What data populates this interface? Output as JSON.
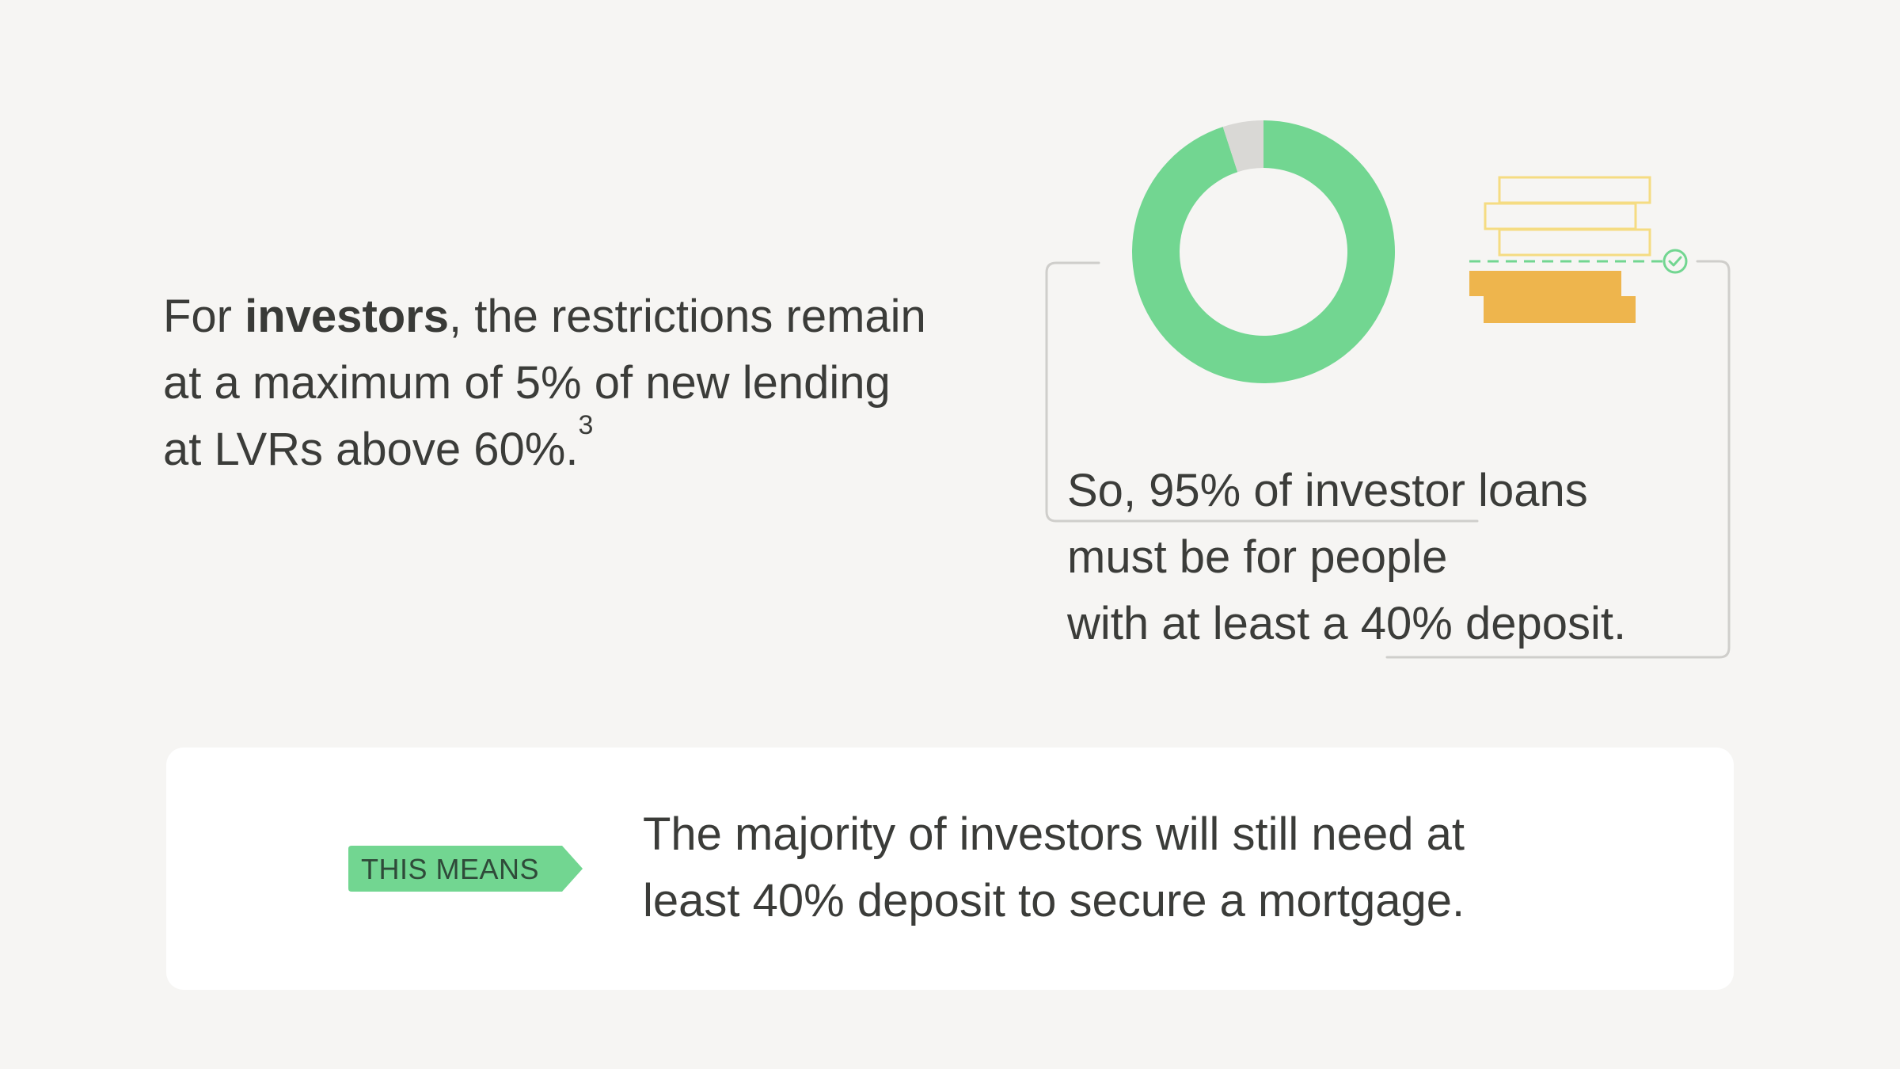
{
  "intro": {
    "prefix": "For ",
    "bold": "investors",
    "suffix": ", the restrictions remain at a maximum of 5% of new lending at LVRs above 60%.",
    "footnote": "3"
  },
  "chart_data": {
    "type": "pie",
    "style": "donut",
    "values": [
      95,
      5
    ],
    "colors": [
      "#72d691",
      "#d9d8d5"
    ]
  },
  "stat": {
    "lines": [
      "So, 95% of investor loans",
      "must be for people",
      "with at least a 40% deposit."
    ]
  },
  "callout": {
    "tag": "THIS MEANS",
    "lines": [
      "The majority of investors will still need at",
      "least 40% deposit to secure a mortgage."
    ]
  },
  "colors": {
    "background": "#f6f5f3",
    "accent_green": "#72d691",
    "light_gray": "#d9d8d5",
    "outline_gray": "#cfcecb",
    "block_yellow_outline": "#f5dc82",
    "block_orange": "#eeb54d",
    "text": "#3b3c39",
    "card": "#ffffff"
  },
  "icons": {
    "check": "check-circle-icon",
    "blocks": "stacked-deposit-blocks-icon"
  }
}
